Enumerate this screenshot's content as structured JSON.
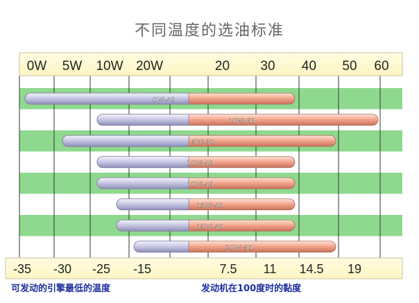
{
  "title": "不同温度的选油标准",
  "chart_data": {
    "type": "bar",
    "title": "不同温度的选油标准",
    "top_axis": {
      "winter_grades": [
        "0W",
        "5W",
        "10W",
        "20W"
      ],
      "summer_grades": [
        "20",
        "30",
        "40",
        "50",
        "60"
      ]
    },
    "bottom_axis": {
      "cold_start_temps": [
        "-35",
        "-30",
        "-25",
        "-15"
      ],
      "viscosity_100c": [
        "7.5",
        "11",
        "14.5",
        "19"
      ]
    },
    "xlabel_left": "可发动的引擎最低的温度",
    "xlabel_right": "发动机在100度时的黏度",
    "series": [
      {
        "name": "0W-40",
        "start": "0W",
        "end": "40"
      },
      {
        "name": "10W-60",
        "start": "10W",
        "end": "60"
      },
      {
        "name": "5W-50",
        "start": "5W",
        "end": "50"
      },
      {
        "name": "10W-40",
        "start": "10W",
        "end": "40"
      },
      {
        "name": "10W-40",
        "start": "10W",
        "end": "40"
      },
      {
        "name": "15W-40",
        "start": "15W",
        "end": "40"
      },
      {
        "name": "15W-40",
        "start": "15W",
        "end": "40"
      },
      {
        "name": "20W-50",
        "start": "20W",
        "end": "50"
      }
    ],
    "colors": {
      "winter_bar": "#c5c5e4",
      "summer_bar": "#f2a58c",
      "band_green": "#8fd98f",
      "label_text": "#ffffff",
      "bottom_label": "#1f2f9e"
    }
  }
}
